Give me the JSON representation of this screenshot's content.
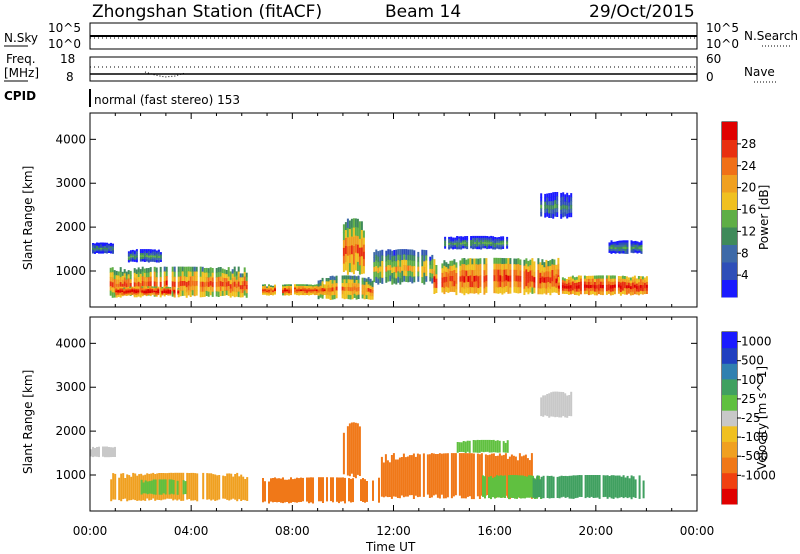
{
  "header": {
    "station": "Zhongshan Station (fitACF)",
    "beam": "Beam 14",
    "date": "29/Oct/2015"
  },
  "top_panels": {
    "nsky_label": "N.Sky",
    "nsearch_label": "N.Search",
    "nsky_ticks": [
      "10^5",
      "10^0"
    ],
    "nsearch_ticks": [
      "10^5",
      "10^0"
    ],
    "freq_label_1": "Freq.",
    "freq_label_2": "[MHz]",
    "freq_ticks": [
      "18",
      "8"
    ],
    "nave_label": "Nave",
    "nave_ticks": [
      "60",
      "0"
    ],
    "cpid_label": "CPID",
    "cpid_text": "normal (fast stereo) 153"
  },
  "colors": {
    "power_scale": [
      "#1a1aff",
      "#2f4fb8",
      "#3e6aa8",
      "#3f8a5a",
      "#5fae46",
      "#f0c020",
      "#f0a020",
      "#f07018",
      "#e83010",
      "#e00000"
    ],
    "velocity_scale": [
      "#e00000",
      "#f04010",
      "#f07818",
      "#f0a020",
      "#f0c020",
      "#c8c8c8",
      "#60c040",
      "#40a060",
      "#3080b0",
      "#2040c0",
      "#1a1aff"
    ]
  },
  "chart_data": [
    {
      "type": "heatmap",
      "name": "power",
      "ylabel": "Slant Range [km]",
      "xlabel": "Time UT",
      "xlim": [
        0,
        24
      ],
      "ylim": [
        180,
        4600
      ],
      "yticks": [
        "1000",
        "2000",
        "3000",
        "4000"
      ],
      "xticks": [
        "00:00",
        "04:00",
        "08:00",
        "12:00",
        "16:00",
        "20:00",
        "00:00"
      ],
      "colorbar": {
        "label": "Power [dB]",
        "ticks": [
          "4",
          "8",
          "12",
          "16",
          "20",
          "24",
          "28"
        ],
        "range": [
          0,
          32
        ]
      },
      "regions": [
        {
          "t0": 0.0,
          "t1": 0.9,
          "r0": 1400,
          "r1": 1650,
          "val": 6
        },
        {
          "t0": 0.7,
          "t1": 6.2,
          "r0": 400,
          "r1": 1100,
          "val": 20
        },
        {
          "t0": 1.0,
          "t1": 3.5,
          "r0": 450,
          "r1": 650,
          "val": 26
        },
        {
          "t0": 1.5,
          "t1": 2.8,
          "r0": 1200,
          "r1": 1500,
          "val": 7
        },
        {
          "t0": 6.8,
          "t1": 9.5,
          "r0": 450,
          "r1": 700,
          "val": 22
        },
        {
          "t0": 9.0,
          "t1": 11.2,
          "r0": 350,
          "r1": 900,
          "val": 18
        },
        {
          "t0": 10.0,
          "t1": 10.8,
          "r0": 900,
          "r1": 2200,
          "val": 20
        },
        {
          "t0": 11.2,
          "t1": 13.5,
          "r0": 700,
          "r1": 1500,
          "val": 14
        },
        {
          "t0": 13.5,
          "t1": 18.5,
          "r0": 450,
          "r1": 1300,
          "val": 22
        },
        {
          "t0": 14.0,
          "t1": 16.5,
          "r0": 1500,
          "r1": 1800,
          "val": 7
        },
        {
          "t0": 17.8,
          "t1": 19.0,
          "r0": 2200,
          "r1": 2800,
          "val": 6
        },
        {
          "t0": 18.5,
          "t1": 22.0,
          "r0": 450,
          "r1": 900,
          "val": 24
        },
        {
          "t0": 20.5,
          "t1": 21.8,
          "r0": 1400,
          "r1": 1700,
          "val": 7
        }
      ]
    },
    {
      "type": "heatmap",
      "name": "velocity",
      "ylabel": "Slant Range [km]",
      "xlabel": "Time UT",
      "xlim": [
        0,
        24
      ],
      "ylim": [
        180,
        4600
      ],
      "yticks": [
        "1000",
        "2000",
        "3000",
        "4000"
      ],
      "xticks": [
        "00:00",
        "04:00",
        "08:00",
        "12:00",
        "16:00",
        "20:00",
        "00:00"
      ],
      "colorbar": {
        "label": "Velocity [m s^-1]",
        "ticks": [
          "-1000",
          "-500",
          "-100",
          "-25",
          "25",
          "100",
          "500",
          "1000"
        ]
      },
      "regions": [
        {
          "t0": 0.0,
          "t1": 1.0,
          "r0": 1400,
          "r1": 1650,
          "cls": "grey"
        },
        {
          "t0": 0.8,
          "t1": 6.2,
          "r0": 400,
          "r1": 1050,
          "cls": "orange"
        },
        {
          "t0": 2.0,
          "t1": 3.8,
          "r0": 550,
          "r1": 900,
          "cls": "green"
        },
        {
          "t0": 6.8,
          "t1": 11.5,
          "r0": 350,
          "r1": 950,
          "cls": "darkorange"
        },
        {
          "t0": 10.0,
          "t1": 10.8,
          "r0": 900,
          "r1": 2200,
          "cls": "darkorange"
        },
        {
          "t0": 11.5,
          "t1": 17.5,
          "r0": 450,
          "r1": 1500,
          "cls": "darkorange"
        },
        {
          "t0": 15.5,
          "t1": 17.8,
          "r0": 450,
          "r1": 1000,
          "cls": "green"
        },
        {
          "t0": 17.5,
          "t1": 21.9,
          "r0": 450,
          "r1": 1000,
          "cls": "darkgreen"
        },
        {
          "t0": 17.8,
          "t1": 19.0,
          "r0": 2300,
          "r1": 2900,
          "cls": "grey"
        },
        {
          "t0": 14.5,
          "t1": 16.5,
          "r0": 1500,
          "r1": 1800,
          "cls": "lightgreen"
        }
      ]
    }
  ]
}
